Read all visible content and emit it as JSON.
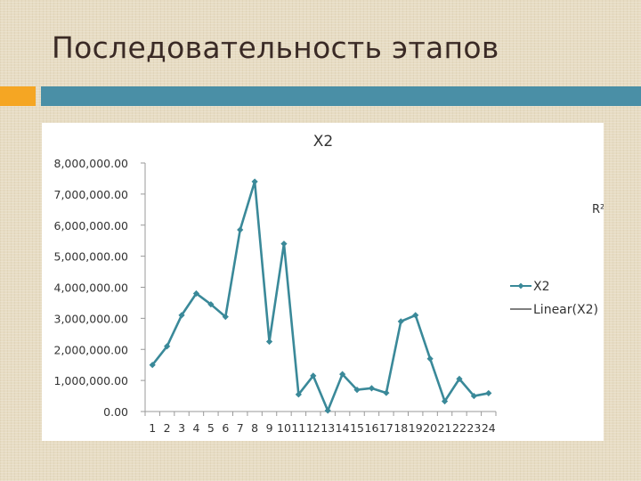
{
  "slide": {
    "title": "Последовательность этапов"
  },
  "colors": {
    "accent_orange": "#f5a623",
    "accent_teal": "#4a8fa6",
    "series_line": "#3a8999"
  },
  "chart_data": {
    "type": "line",
    "title": "X2",
    "xlabel": "",
    "ylabel": "",
    "categories": [
      "1",
      "2",
      "3",
      "4",
      "5",
      "6",
      "7",
      "8",
      "9",
      "10",
      "11",
      "12",
      "13",
      "14",
      "15",
      "16",
      "17",
      "18",
      "19",
      "20",
      "21",
      "22",
      "23",
      "24"
    ],
    "series": [
      {
        "name": "X2",
        "values": [
          1500000,
          2100000,
          3100000,
          3800000,
          3450000,
          3050000,
          5850000,
          7400000,
          2250000,
          5400000,
          550000,
          1150000,
          30000,
          1200000,
          700000,
          750000,
          600000,
          2900000,
          3100000,
          1700000,
          330000,
          1050000,
          500000,
          590000
        ]
      }
    ],
    "ylim": [
      0,
      8000000
    ],
    "y_ticks": [
      0,
      1000000,
      2000000,
      3000000,
      4000000,
      5000000,
      6000000,
      7000000,
      8000000
    ],
    "y_tick_labels": [
      "0.00",
      "1,000,000.00",
      "2,000,000.00",
      "3,000,000.00",
      "4,000,000.00",
      "5,000,000.00",
      "6,000,000.00",
      "7,000,000.00",
      "8,000,000.00"
    ],
    "legend": {
      "position": "right",
      "entries": [
        "X2",
        "Linear(X2)"
      ]
    },
    "annotation": "R²",
    "grid": false
  }
}
